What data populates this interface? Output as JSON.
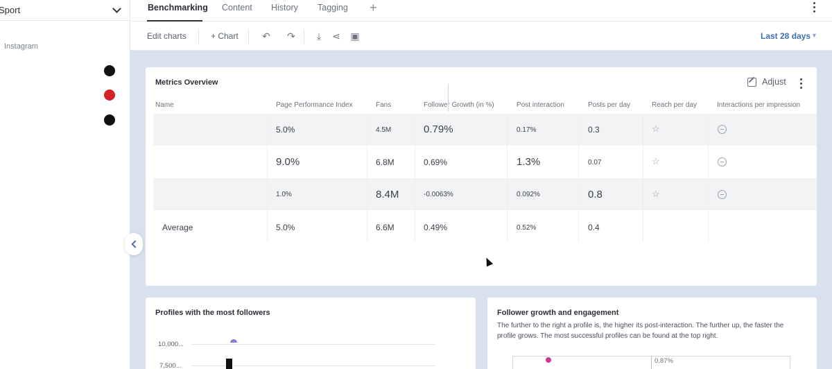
{
  "sidebar": {
    "selector_label": "Sport",
    "platform_label": "Instagram",
    "profile_dots": [
      {
        "color": "#111111"
      },
      {
        "color": "#d2232a"
      },
      {
        "color": "#111111"
      }
    ]
  },
  "tabs": [
    {
      "label": "Benchmarking",
      "active": true
    },
    {
      "label": "Content",
      "active": false
    },
    {
      "label": "History",
      "active": false
    },
    {
      "label": "Tagging",
      "active": false
    }
  ],
  "toolbar": {
    "edit_charts": "Edit charts",
    "add_chart": "+ Chart",
    "date_range": "Last 28 days",
    "icons": [
      "undo-icon",
      "redo-icon",
      "download-icon",
      "share-icon",
      "present-icon"
    ]
  },
  "metrics": {
    "title": "Metrics Overview",
    "adjust_label": "Adjust",
    "columns": [
      "Name",
      "Page Performance Index",
      "Fans",
      "Follower Growth (in %)",
      "Post interaction",
      "Posts per day",
      "Reach per day",
      "Interactions per impression"
    ],
    "rows": [
      {
        "name": "",
        "ppi": "5.0%",
        "fans": "4.5M",
        "growth": "0.79%",
        "interaction": "0.17%",
        "posts": "0.3"
      },
      {
        "name": "",
        "ppi": "9.0%",
        "fans": "6.8M",
        "growth": "0.69%",
        "interaction": "1.3%",
        "posts": "0.07"
      },
      {
        "name": "",
        "ppi": "1.0%",
        "fans": "8.4M",
        "growth": "-0.0063%",
        "interaction": "0.092%",
        "posts": "0.8"
      }
    ],
    "average": {
      "name": "Average",
      "ppi": "5.0%",
      "fans": "6.6M",
      "growth": "0.49%",
      "interaction": "0.52%",
      "posts": "0.4"
    }
  },
  "profiles_card": {
    "title": "Profiles with the most followers",
    "ticks": [
      "10,000...",
      "7,500..."
    ]
  },
  "growth_card": {
    "title": "Follower growth and engagement",
    "description": "The further to the right a profile is, the higher its post-interaction. The further up, the faster the profile grows. The most successful profiles can be found at the top right.",
    "midline_label": "0.87%"
  },
  "colors": {
    "accent": "#3d6fb6",
    "canvas": "#d7e2ee"
  }
}
